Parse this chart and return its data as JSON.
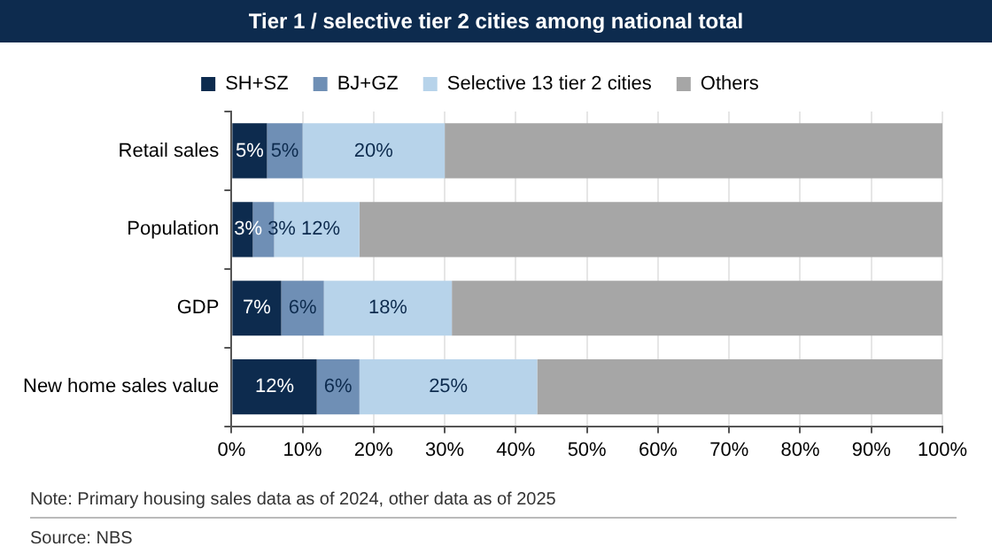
{
  "chart_data": {
    "type": "bar",
    "orientation": "horizontal",
    "stacked": true,
    "title": "Tier 1 / selective tier 2 cities among national total",
    "categories": [
      "Retail sales",
      "Population",
      "GDP",
      "New home sales value"
    ],
    "series": [
      {
        "name": "SH+SZ",
        "color": "#0d2b4e",
        "values": [
          5,
          3,
          7,
          12
        ],
        "value_labels": [
          "5%",
          "3%",
          "7%",
          "12%"
        ]
      },
      {
        "name": "BJ+GZ",
        "color": "#6f8fb5",
        "values": [
          5,
          3,
          6,
          6
        ],
        "value_labels": [
          "5%",
          "3%",
          "6%",
          "6%"
        ]
      },
      {
        "name": "Selective 13 tier 2 cities",
        "color": "#b7d3ea",
        "values": [
          20,
          12,
          18,
          25
        ],
        "value_labels": [
          "20%",
          "12%",
          "18%",
          "25%"
        ]
      },
      {
        "name": "Others",
        "color": "#a6a6a6",
        "values": [
          70,
          82,
          69,
          57
        ]
      }
    ],
    "xlim": [
      0,
      100
    ],
    "xticks": [
      {
        "value": 0,
        "label": "0%"
      },
      {
        "value": 10,
        "label": "10%"
      },
      {
        "value": 20,
        "label": "20%"
      },
      {
        "value": 30,
        "label": "30%"
      },
      {
        "value": 40,
        "label": "40%"
      },
      {
        "value": 50,
        "label": "50%"
      },
      {
        "value": 60,
        "label": "60%"
      },
      {
        "value": 70,
        "label": "70%"
      },
      {
        "value": 80,
        "label": "80%"
      },
      {
        "value": 90,
        "label": "90%"
      },
      {
        "value": 100,
        "label": "100%"
      }
    ],
    "grid": "x",
    "legend": "top",
    "annotations": [
      "Note: Primary housing sales data as of 2024, other data as of 2025",
      "Source: NBS"
    ]
  }
}
